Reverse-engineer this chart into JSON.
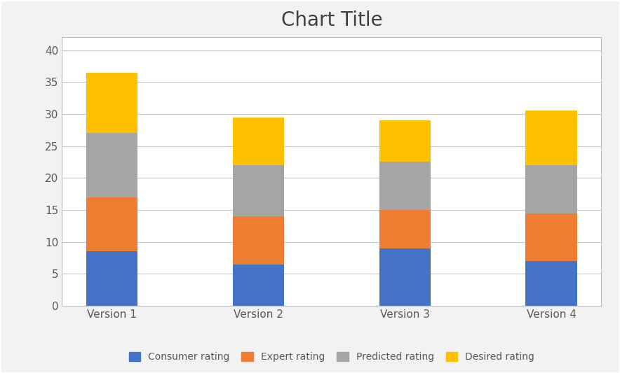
{
  "categories": [
    "Version 1",
    "Version 2",
    "Version 3",
    "Version 4"
  ],
  "series": {
    "Consumer rating": [
      8.5,
      6.5,
      9.0,
      7.0
    ],
    "Expert rating": [
      8.5,
      7.5,
      6.0,
      7.5
    ],
    "Predicted rating": [
      10.0,
      8.0,
      7.5,
      7.5
    ],
    "Desired rating": [
      9.5,
      7.5,
      6.5,
      8.5
    ]
  },
  "colors": {
    "Consumer rating": "#4472C4",
    "Expert rating": "#ED7D31",
    "Predicted rating": "#A5A5A5",
    "Desired rating": "#FFC000"
  },
  "title": "Chart Title",
  "title_fontsize": 20,
  "ylim": [
    0,
    42
  ],
  "yticks": [
    0,
    5,
    10,
    15,
    20,
    25,
    30,
    35,
    40
  ],
  "bar_width": 0.35,
  "figure_bg": "#F2F2F2",
  "plot_bg": "#FFFFFF",
  "grid_color": "#C8C8C8",
  "border_color": "#BFBFBF",
  "legend_fontsize": 10,
  "tick_fontsize": 11,
  "label_color": "#595959"
}
